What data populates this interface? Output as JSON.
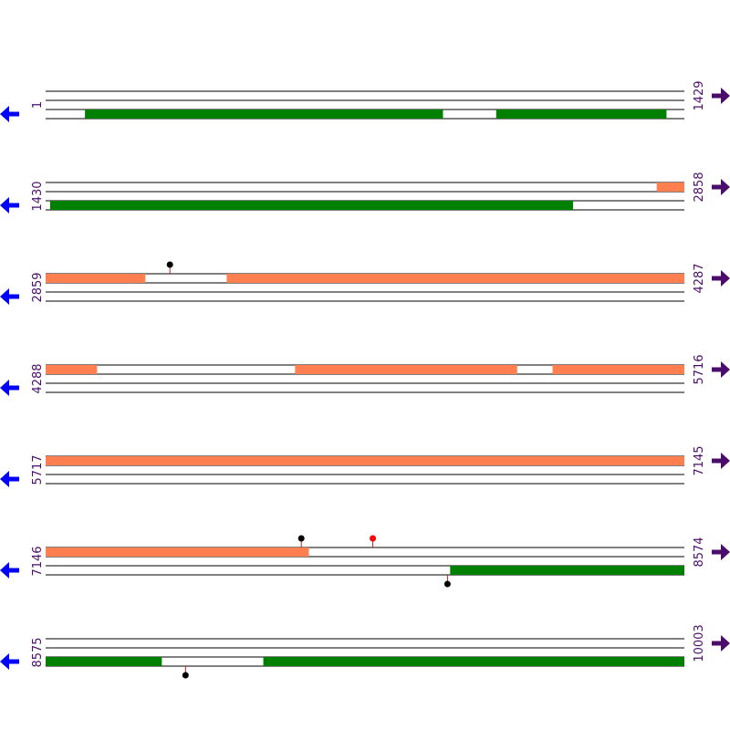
{
  "colors": {
    "forward_feature": "#ff7f50",
    "reverse_feature": "#008000",
    "track_line": "#000000",
    "forward_arrow": "#4b0d6b",
    "reverse_arrow": "#0000ff",
    "marker_stem": "#b22222",
    "marker_black": "#000000",
    "marker_red": "#ff0000"
  },
  "icons": {
    "forward": "arrow-right-icon",
    "reverse": "arrow-left-icon"
  },
  "rows": [
    {
      "start": "1",
      "end": "1429",
      "start_bp": 1,
      "end_bp": 1429,
      "forward_features": [],
      "reverse_features": [
        [
          89,
          889
        ],
        [
          1009,
          1389
        ]
      ],
      "markers": []
    },
    {
      "start": "1430",
      "end": "2858",
      "start_bp": 1430,
      "end_bp": 2858,
      "forward_features": [
        [
          2797,
          2858
        ]
      ],
      "reverse_features": [
        [
          1440,
          2609
        ]
      ],
      "markers": []
    },
    {
      "start": "2859",
      "end": "4287",
      "start_bp": 2859,
      "end_bp": 4287,
      "forward_features": [
        [
          2859,
          3081
        ],
        [
          3264,
          4287
        ]
      ],
      "reverse_features": [],
      "markers": [
        {
          "pos": 3137,
          "strand": "forward",
          "color": "black"
        }
      ]
    },
    {
      "start": "4288",
      "end": "5716",
      "start_bp": 4288,
      "end_bp": 5716,
      "forward_features": [
        [
          4288,
          4402
        ],
        [
          4846,
          5342
        ],
        [
          5422,
          5716
        ]
      ],
      "reverse_features": [],
      "markers": []
    },
    {
      "start": "5717",
      "end": "7145",
      "start_bp": 5717,
      "end_bp": 7145,
      "forward_features": [
        [
          5717,
          7145
        ]
      ],
      "reverse_features": [],
      "markers": []
    },
    {
      "start": "7146",
      "end": "8574",
      "start_bp": 7146,
      "end_bp": 8574,
      "forward_features": [
        [
          7146,
          7734
        ]
      ],
      "reverse_features": [
        [
          8051,
          8574
        ]
      ],
      "markers": [
        {
          "pos": 7718,
          "strand": "forward",
          "color": "black"
        },
        {
          "pos": 7878,
          "strand": "forward",
          "color": "red"
        },
        {
          "pos": 8045,
          "strand": "reverse",
          "color": "black"
        }
      ]
    },
    {
      "start": "8575",
      "end": "10003",
      "start_bp": 8575,
      "end_bp": 10003,
      "forward_features": [],
      "reverse_features": [
        [
          8575,
          8834
        ],
        [
          9062,
          10003
        ]
      ],
      "markers": [
        {
          "pos": 8888,
          "strand": "reverse",
          "color": "black"
        }
      ]
    }
  ]
}
